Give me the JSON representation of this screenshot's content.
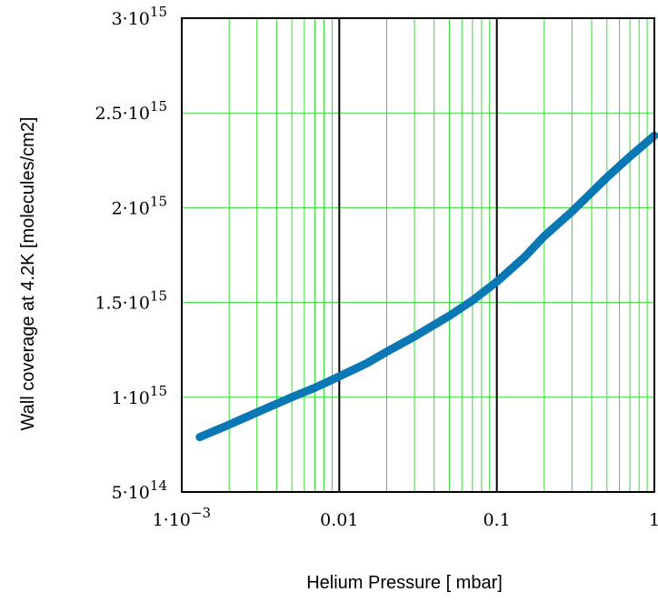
{
  "chart_data": {
    "type": "line",
    "xlabel": "Helium Pressure [ mbar]",
    "ylabel": "Wall coverage at 4.2K  [molecules/cm2]",
    "x_scale": "log",
    "xlim": [
      0.001,
      1
    ],
    "ylim": [
      500000000000000.0,
      3000000000000000.0
    ],
    "grid": true,
    "x_ticks": [
      {
        "value": 0.001,
        "label": "1·10",
        "exp": "−3"
      },
      {
        "value": 0.01,
        "label": "0.01",
        "exp": ""
      },
      {
        "value": 0.1,
        "label": "0.1",
        "exp": ""
      },
      {
        "value": 1,
        "label": "1",
        "exp": ""
      }
    ],
    "y_ticks": [
      {
        "value": 500000000000000.0,
        "label": "5·10",
        "exp": "14"
      },
      {
        "value": 1000000000000000.0,
        "label": "1·10",
        "exp": "15"
      },
      {
        "value": 1500000000000000.0,
        "label": "1.5·10",
        "exp": "15"
      },
      {
        "value": 2000000000000000.0,
        "label": "2·10",
        "exp": "15"
      },
      {
        "value": 2500000000000000.0,
        "label": "2.5·10",
        "exp": "15"
      },
      {
        "value": 3000000000000000.0,
        "label": "3·10",
        "exp": "15"
      }
    ],
    "series": [
      {
        "color": "#0a78b4",
        "x": [
          0.0013,
          0.002,
          0.003,
          0.005,
          0.007,
          0.01,
          0.015,
          0.02,
          0.03,
          0.05,
          0.07,
          0.1,
          0.15,
          0.2,
          0.3,
          0.5,
          0.7,
          1.0
        ],
        "y": [
          790000000000000.0,
          855000000000000.0,
          920000000000000.0,
          1000000000000000.0,
          1050000000000000.0,
          1110000000000000.0,
          1180000000000000.0,
          1240000000000000.0,
          1320000000000000.0,
          1430000000000000.0,
          1510000000000000.0,
          1610000000000000.0,
          1740000000000000.0,
          1850000000000000.0,
          1980000000000000.0,
          2160000000000000.0,
          2270000000000000.0,
          2380000000000000.0
        ]
      }
    ]
  }
}
